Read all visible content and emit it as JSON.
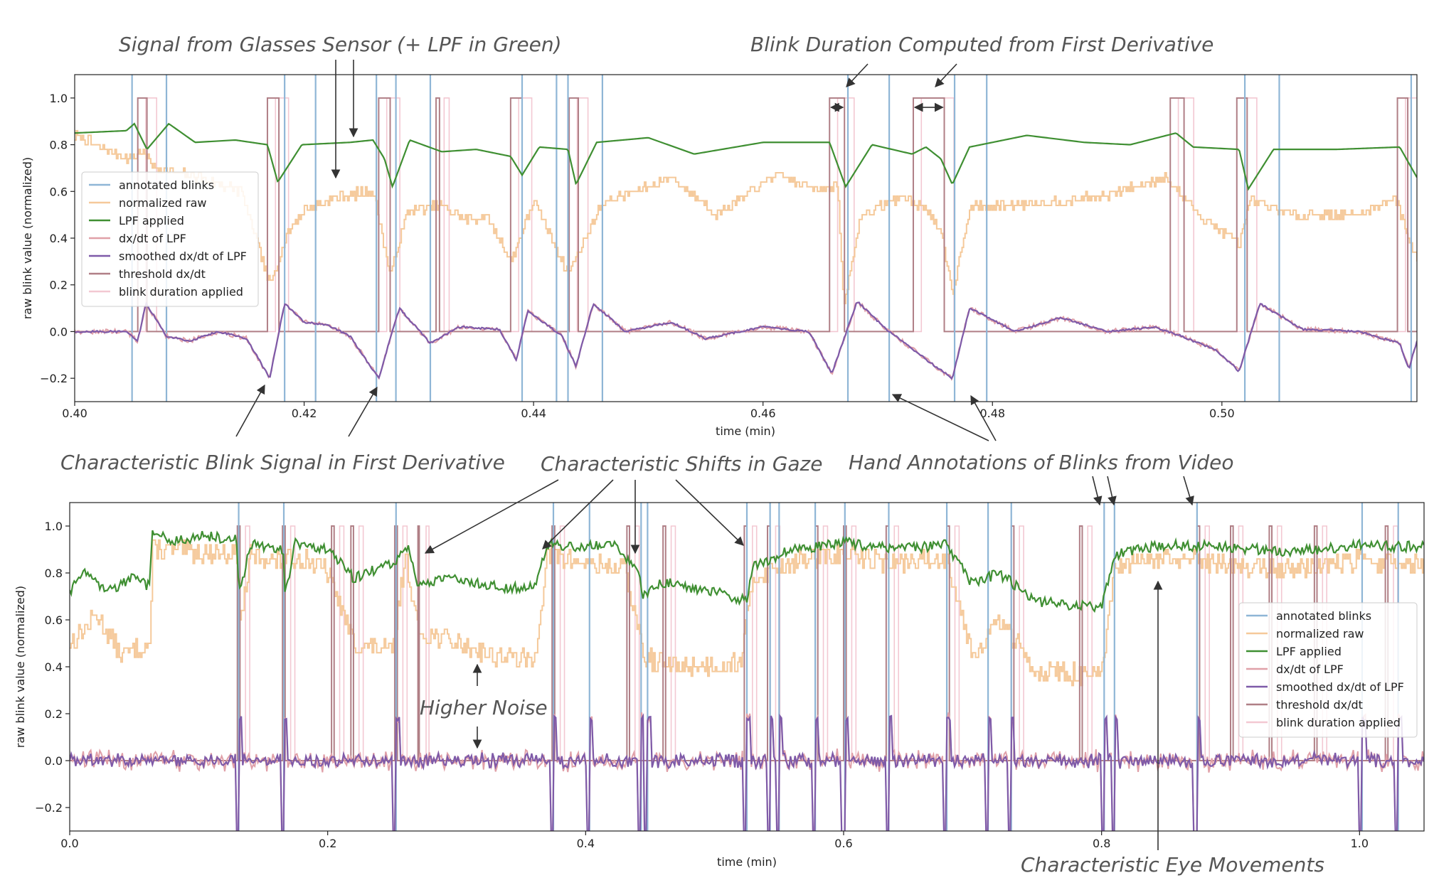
{
  "annotations": {
    "a1": "Signal from Glasses Sensor (+ LPF in Green)",
    "a2": "Blink Duration Computed from First Derivative",
    "a3": "Characteristic Blink Signal in First Derivative",
    "a4": "Characteristic Shifts in Gaze",
    "a5": "Hand Annotations of Blinks from Video",
    "a6": "Higher Noise",
    "a7": "Characteristic Eye Movements"
  },
  "legend_labels": [
    "annotated blinks",
    "normalized raw",
    "LPF applied",
    "dx/dt of LPF",
    "smoothed dx/dt of LPF",
    "threshold dx/dt",
    "blink duration applied"
  ],
  "colors": {
    "annotated": "#8fb6d6",
    "raw": "#f5c99a",
    "lpf": "#3f8f32",
    "dxdt": "#e0a0a8",
    "smoothed": "#7e5aa8",
    "threshold": "#b07f86",
    "duration": "#f3c8d2"
  },
  "chart_data": [
    {
      "type": "line",
      "xlabel": "time (min)",
      "ylabel": "raw blink value (normalized)",
      "xlim": [
        0.4,
        0.517
      ],
      "ylim": [
        -0.3,
        1.1
      ],
      "xticks": [
        "0.40",
        "0.42",
        "0.44",
        "0.46",
        "0.48",
        "0.50"
      ],
      "yticks": [
        "−0.2",
        "0.0",
        "0.2",
        "0.4",
        "0.6",
        "0.8",
        "1.0"
      ],
      "legend_position": "center-left",
      "annotated_blinks": [
        0.405,
        0.408,
        0.4183,
        0.421,
        0.4263,
        0.428,
        0.431,
        0.439,
        0.442,
        0.443,
        0.446,
        0.4674,
        0.471,
        0.4767,
        0.4795,
        0.502,
        0.505,
        0.5165
      ],
      "threshold_windows": [
        [
          0.4055,
          0.4063
        ],
        [
          0.4168,
          0.4178
        ],
        [
          0.4265,
          0.4275
        ],
        [
          0.4315,
          0.4318
        ],
        [
          0.438,
          0.439
        ],
        [
          0.4431,
          0.4439
        ],
        [
          0.4658,
          0.4671
        ],
        [
          0.4731,
          0.4758
        ],
        [
          0.4955,
          0.4967
        ],
        [
          0.5013,
          0.5022
        ],
        [
          0.5153,
          0.5162
        ]
      ],
      "lpf_keypoints": [
        [
          0.4,
          0.85
        ],
        [
          0.4045,
          0.86
        ],
        [
          0.4052,
          0.89
        ],
        [
          0.4063,
          0.78
        ],
        [
          0.4082,
          0.89
        ],
        [
          0.4105,
          0.81
        ],
        [
          0.414,
          0.82
        ],
        [
          0.4168,
          0.8
        ],
        [
          0.4177,
          0.64
        ],
        [
          0.4198,
          0.8
        ],
        [
          0.424,
          0.81
        ],
        [
          0.426,
          0.82
        ],
        [
          0.427,
          0.74
        ],
        [
          0.4277,
          0.62
        ],
        [
          0.4292,
          0.82
        ],
        [
          0.432,
          0.77
        ],
        [
          0.435,
          0.78
        ],
        [
          0.438,
          0.75
        ],
        [
          0.439,
          0.67
        ],
        [
          0.4405,
          0.79
        ],
        [
          0.443,
          0.78
        ],
        [
          0.4437,
          0.63
        ],
        [
          0.4455,
          0.81
        ],
        [
          0.45,
          0.83
        ],
        [
          0.454,
          0.76
        ],
        [
          0.46,
          0.81
        ],
        [
          0.4658,
          0.81
        ],
        [
          0.4672,
          0.62
        ],
        [
          0.4695,
          0.8
        ],
        [
          0.473,
          0.76
        ],
        [
          0.4742,
          0.79
        ],
        [
          0.4755,
          0.74
        ],
        [
          0.4765,
          0.63
        ],
        [
          0.478,
          0.79
        ],
        [
          0.483,
          0.84
        ],
        [
          0.488,
          0.81
        ],
        [
          0.492,
          0.8
        ],
        [
          0.496,
          0.85
        ],
        [
          0.4975,
          0.79
        ],
        [
          0.5015,
          0.78
        ],
        [
          0.5023,
          0.61
        ],
        [
          0.5045,
          0.78
        ],
        [
          0.51,
          0.78
        ],
        [
          0.5155,
          0.79
        ],
        [
          0.517,
          0.66
        ]
      ],
      "raw_keypoints": [
        [
          0.4,
          0.84
        ],
        [
          0.4045,
          0.74
        ],
        [
          0.406,
          0.77
        ],
        [
          0.407,
          0.7
        ],
        [
          0.4085,
          0.68
        ],
        [
          0.411,
          0.66
        ],
        [
          0.4145,
          0.6
        ],
        [
          0.417,
          0.2
        ],
        [
          0.4185,
          0.42
        ],
        [
          0.42,
          0.52
        ],
        [
          0.423,
          0.58
        ],
        [
          0.426,
          0.6
        ],
        [
          0.4275,
          0.24
        ],
        [
          0.429,
          0.52
        ],
        [
          0.432,
          0.54
        ],
        [
          0.434,
          0.48
        ],
        [
          0.436,
          0.49
        ],
        [
          0.438,
          0.3
        ],
        [
          0.44,
          0.56
        ],
        [
          0.443,
          0.25
        ],
        [
          0.446,
          0.55
        ],
        [
          0.452,
          0.66
        ],
        [
          0.456,
          0.5
        ],
        [
          0.461,
          0.67
        ],
        [
          0.464,
          0.62
        ],
        [
          0.4665,
          0.62
        ],
        [
          0.467,
          0.1
        ],
        [
          0.4685,
          0.5
        ],
        [
          0.472,
          0.58
        ],
        [
          0.4745,
          0.52
        ],
        [
          0.4755,
          0.42
        ],
        [
          0.4765,
          0.16
        ],
        [
          0.478,
          0.53
        ],
        [
          0.486,
          0.56
        ],
        [
          0.49,
          0.58
        ],
        [
          0.495,
          0.66
        ],
        [
          0.498,
          0.5
        ],
        [
          0.5015,
          0.38
        ],
        [
          0.5025,
          0.56
        ],
        [
          0.506,
          0.5
        ],
        [
          0.512,
          0.5
        ],
        [
          0.515,
          0.58
        ],
        [
          0.517,
          0.3
        ]
      ],
      "smoothed_keypoints": [
        [
          0.4,
          0.0
        ],
        [
          0.4045,
          0.0
        ],
        [
          0.4055,
          -0.04
        ],
        [
          0.4062,
          0.12
        ],
        [
          0.407,
          0.06
        ],
        [
          0.408,
          -0.02
        ],
        [
          0.41,
          -0.04
        ],
        [
          0.4125,
          0.0
        ],
        [
          0.415,
          -0.03
        ],
        [
          0.417,
          -0.2
        ],
        [
          0.4183,
          0.12
        ],
        [
          0.42,
          0.04
        ],
        [
          0.422,
          0.03
        ],
        [
          0.424,
          -0.02
        ],
        [
          0.4265,
          -0.2
        ],
        [
          0.4283,
          0.1
        ],
        [
          0.431,
          -0.05
        ],
        [
          0.4335,
          0.02
        ],
        [
          0.437,
          0.01
        ],
        [
          0.4385,
          -0.12
        ],
        [
          0.4395,
          0.09
        ],
        [
          0.4425,
          -0.02
        ],
        [
          0.4437,
          -0.15
        ],
        [
          0.4452,
          0.12
        ],
        [
          0.448,
          0.0
        ],
        [
          0.452,
          0.04
        ],
        [
          0.455,
          -0.03
        ],
        [
          0.46,
          0.02
        ],
        [
          0.464,
          0.0
        ],
        [
          0.466,
          -0.18
        ],
        [
          0.4682,
          0.13
        ],
        [
          0.4705,
          0.02
        ],
        [
          0.4745,
          -0.13
        ],
        [
          0.4765,
          -0.2
        ],
        [
          0.478,
          0.1
        ],
        [
          0.482,
          0.0
        ],
        [
          0.486,
          0.06
        ],
        [
          0.49,
          0.0
        ],
        [
          0.494,
          0.02
        ],
        [
          0.4965,
          -0.02
        ],
        [
          0.4995,
          -0.08
        ],
        [
          0.5015,
          -0.17
        ],
        [
          0.5033,
          0.12
        ],
        [
          0.507,
          0.01
        ],
        [
          0.512,
          0.0
        ],
        [
          0.5155,
          -0.05
        ],
        [
          0.5163,
          -0.16
        ],
        [
          0.517,
          -0.04
        ]
      ]
    },
    {
      "type": "line",
      "xlabel": "time (min)",
      "ylabel": "raw blink value (normalized)",
      "xlim": [
        0.0,
        1.05
      ],
      "ylim": [
        -0.3,
        1.1
      ],
      "xticks": [
        "0.0",
        "0.2",
        "0.4",
        "0.6",
        "0.8",
        "1.0"
      ],
      "yticks": [
        "−0.2",
        "0.0",
        "0.2",
        "0.4",
        "0.6",
        "0.8",
        "1.0"
      ],
      "legend_position": "right",
      "annotated_blinks": [
        0.131,
        0.166,
        0.253,
        0.375,
        0.403,
        0.443,
        0.448,
        0.525,
        0.543,
        0.55,
        0.578,
        0.601,
        0.635,
        0.68,
        0.712,
        0.73,
        0.802,
        0.81,
        0.874,
        1.002,
        1.03
      ],
      "threshold_windows": [
        [
          0.13,
          0.132
        ],
        [
          0.165,
          0.167
        ],
        [
          0.203,
          0.205
        ],
        [
          0.218,
          0.22
        ],
        [
          0.252,
          0.254
        ],
        [
          0.27,
          0.271
        ],
        [
          0.374,
          0.376
        ],
        [
          0.432,
          0.434
        ],
        [
          0.46,
          0.462
        ],
        [
          0.523,
          0.525
        ],
        [
          0.541,
          0.543
        ],
        [
          0.578,
          0.58
        ],
        [
          0.6,
          0.602
        ],
        [
          0.633,
          0.635
        ],
        [
          0.68,
          0.682
        ],
        [
          0.73,
          0.732
        ],
        [
          0.783,
          0.785
        ],
        [
          0.874,
          0.876
        ],
        [
          0.9,
          0.902
        ],
        [
          0.93,
          0.932
        ],
        [
          0.965,
          0.967
        ],
        [
          1.02,
          1.022
        ]
      ],
      "lpf_keypoints": [
        [
          0.0,
          0.72
        ],
        [
          0.01,
          0.8
        ],
        [
          0.03,
          0.72
        ],
        [
          0.05,
          0.78
        ],
        [
          0.062,
          0.74
        ],
        [
          0.064,
          0.98
        ],
        [
          0.08,
          0.93
        ],
        [
          0.1,
          0.96
        ],
        [
          0.13,
          0.94
        ],
        [
          0.131,
          0.7
        ],
        [
          0.14,
          0.92
        ],
        [
          0.166,
          0.9
        ],
        [
          0.167,
          0.7
        ],
        [
          0.175,
          0.93
        ],
        [
          0.2,
          0.9
        ],
        [
          0.22,
          0.78
        ],
        [
          0.24,
          0.82
        ],
        [
          0.253,
          0.84
        ],
        [
          0.255,
          0.88
        ],
        [
          0.262,
          0.91
        ],
        [
          0.27,
          0.75
        ],
        [
          0.3,
          0.78
        ],
        [
          0.33,
          0.74
        ],
        [
          0.36,
          0.74
        ],
        [
          0.37,
          0.92
        ],
        [
          0.4,
          0.91
        ],
        [
          0.42,
          0.93
        ],
        [
          0.44,
          0.82
        ],
        [
          0.445,
          0.7
        ],
        [
          0.46,
          0.76
        ],
        [
          0.5,
          0.72
        ],
        [
          0.525,
          0.68
        ],
        [
          0.53,
          0.83
        ],
        [
          0.56,
          0.9
        ],
        [
          0.6,
          0.93
        ],
        [
          0.64,
          0.9
        ],
        [
          0.68,
          0.92
        ],
        [
          0.7,
          0.75
        ],
        [
          0.72,
          0.8
        ],
        [
          0.75,
          0.68
        ],
        [
          0.8,
          0.65
        ],
        [
          0.81,
          0.88
        ],
        [
          0.85,
          0.92
        ],
        [
          0.9,
          0.91
        ],
        [
          0.95,
          0.89
        ],
        [
          1.0,
          0.92
        ],
        [
          1.05,
          0.91
        ]
      ],
      "raw_keypoints": [
        [
          0.0,
          0.5
        ],
        [
          0.02,
          0.62
        ],
        [
          0.04,
          0.45
        ],
        [
          0.062,
          0.5
        ],
        [
          0.064,
          0.9
        ],
        [
          0.13,
          0.88
        ],
        [
          0.131,
          0.55
        ],
        [
          0.14,
          0.87
        ],
        [
          0.166,
          0.85
        ],
        [
          0.18,
          0.87
        ],
        [
          0.2,
          0.8
        ],
        [
          0.22,
          0.5
        ],
        [
          0.25,
          0.46
        ],
        [
          0.26,
          0.88
        ],
        [
          0.27,
          0.55
        ],
        [
          0.3,
          0.5
        ],
        [
          0.33,
          0.45
        ],
        [
          0.36,
          0.42
        ],
        [
          0.37,
          0.88
        ],
        [
          0.4,
          0.84
        ],
        [
          0.43,
          0.82
        ],
        [
          0.445,
          0.44
        ],
        [
          0.47,
          0.4
        ],
        [
          0.52,
          0.42
        ],
        [
          0.53,
          0.78
        ],
        [
          0.56,
          0.85
        ],
        [
          0.6,
          0.88
        ],
        [
          0.64,
          0.84
        ],
        [
          0.68,
          0.86
        ],
        [
          0.7,
          0.45
        ],
        [
          0.72,
          0.6
        ],
        [
          0.75,
          0.38
        ],
        [
          0.8,
          0.36
        ],
        [
          0.81,
          0.82
        ],
        [
          0.85,
          0.86
        ],
        [
          0.9,
          0.83
        ],
        [
          0.95,
          0.82
        ],
        [
          1.0,
          0.85
        ],
        [
          1.05,
          0.84
        ]
      ]
    }
  ]
}
